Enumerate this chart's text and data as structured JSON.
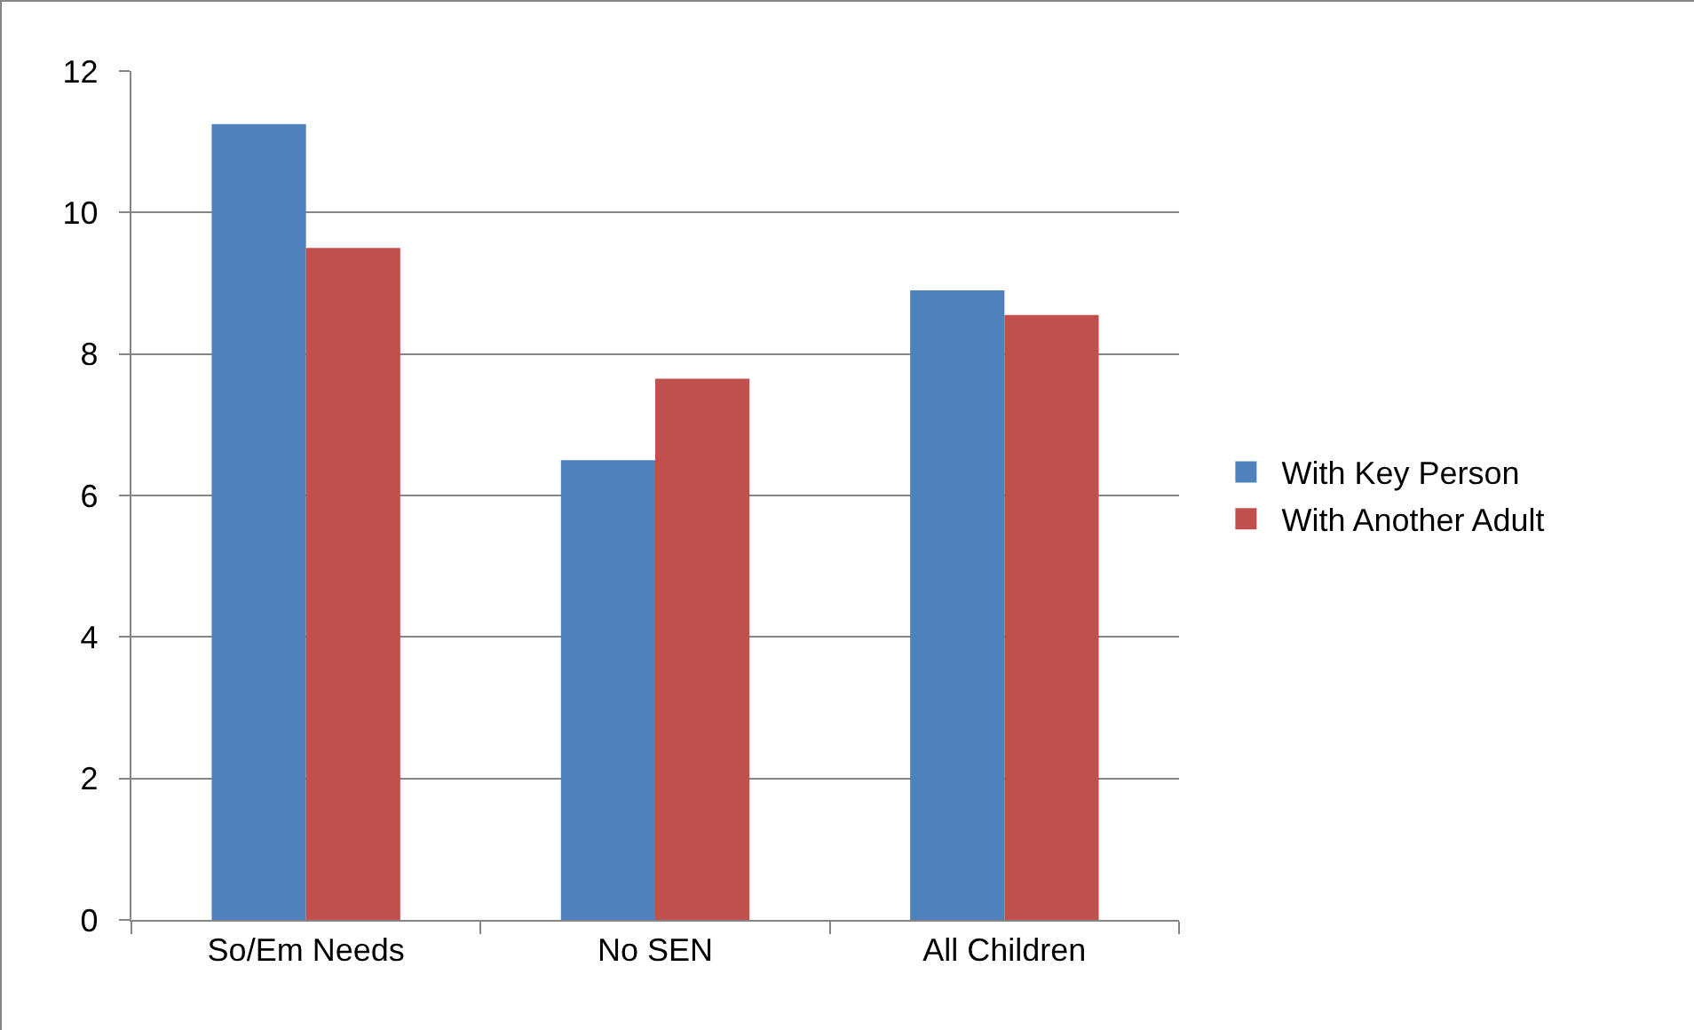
{
  "chart_data": {
    "type": "bar",
    "categories": [
      "So/Em Needs",
      "No SEN",
      "All Children"
    ],
    "series": [
      {
        "name": "With Key Person",
        "color": "#4f81bd",
        "values": [
          11.25,
          6.5,
          8.9
        ]
      },
      {
        "name": "With Another Adult",
        "color": "#c0504d",
        "values": [
          9.5,
          7.65,
          8.55
        ]
      }
    ],
    "ylim": [
      0,
      12
    ],
    "yticks": [
      0,
      2,
      4,
      6,
      8,
      10,
      12
    ],
    "grid": "y",
    "legend": "right"
  }
}
